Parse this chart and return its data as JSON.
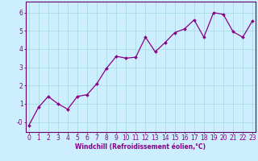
{
  "x": [
    0,
    1,
    2,
    3,
    4,
    5,
    6,
    7,
    8,
    9,
    10,
    11,
    12,
    13,
    14,
    15,
    16,
    17,
    18,
    19,
    20,
    21,
    22,
    23
  ],
  "y": [
    -0.2,
    0.8,
    1.4,
    1.0,
    0.7,
    1.4,
    1.5,
    2.1,
    2.95,
    3.6,
    3.5,
    3.55,
    4.65,
    3.85,
    4.35,
    4.9,
    5.1,
    5.6,
    4.65,
    6.0,
    5.9,
    4.95,
    4.65,
    5.55
  ],
  "line_color": "#880088",
  "marker": "D",
  "marker_size": 2.0,
  "linewidth": 0.9,
  "bg_color": "#cceeff",
  "grid_color": "#aadddd",
  "xlabel": "Windchill (Refroidissement éolien,°C)",
  "xlabel_fontsize": 5.5,
  "xtick_labels": [
    "0",
    "1",
    "2",
    "3",
    "4",
    "5",
    "6",
    "7",
    "8",
    "9",
    "10",
    "11",
    "12",
    "13",
    "14",
    "15",
    "16",
    "17",
    "18",
    "19",
    "20",
    "21",
    "22",
    "23"
  ],
  "ytick_labels": [
    "-0",
    "1",
    "2",
    "3",
    "4",
    "5",
    "6"
  ],
  "ytick_values": [
    0,
    1,
    2,
    3,
    4,
    5,
    6
  ],
  "xlim": [
    -0.3,
    23.3
  ],
  "ylim": [
    -0.55,
    6.6
  ],
  "tick_fontsize": 5.5,
  "spine_color": "#660066"
}
